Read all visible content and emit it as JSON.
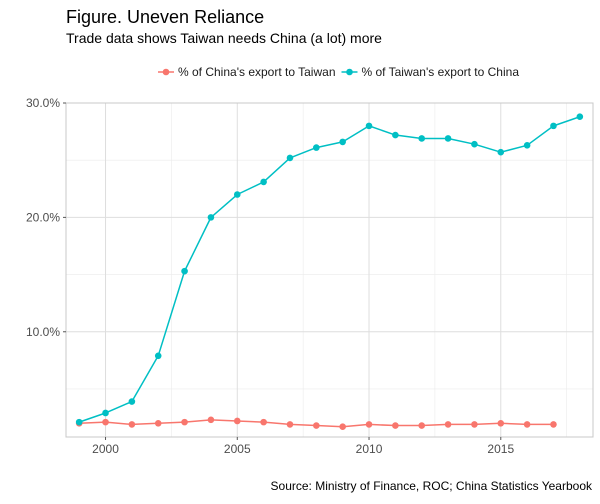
{
  "chart_data": {
    "type": "line",
    "title": "Figure. Uneven Reliance",
    "subtitle": "Trade data shows Taiwan needs China (a lot) more",
    "caption": "Source: Ministry of Finance, ROC; China Statistics Yearbook",
    "xlabel": "",
    "ylabel": "",
    "xlim": [
      1998.5,
      2018.5
    ],
    "ylim": [
      0.8,
      30.0
    ],
    "x_ticks": [
      2000,
      2005,
      2010,
      2015
    ],
    "x_tick_labels": [
      "2000",
      "2005",
      "2010",
      "2015"
    ],
    "y_ticks": [
      10,
      20,
      30
    ],
    "y_tick_labels": [
      "10.0%",
      "20.0%",
      "30.0%"
    ],
    "grid": true,
    "legend_position": "top",
    "series": [
      {
        "name": "% of China's export to Taiwan",
        "color": "#F8766D",
        "x": [
          1999,
          2000,
          2001,
          2002,
          2003,
          2004,
          2005,
          2006,
          2007,
          2008,
          2009,
          2010,
          2011,
          2012,
          2013,
          2014,
          2015,
          2016,
          2017
        ],
        "values": [
          2.0,
          2.1,
          1.9,
          2.0,
          2.1,
          2.3,
          2.2,
          2.1,
          1.9,
          1.8,
          1.7,
          1.9,
          1.8,
          1.8,
          1.9,
          1.9,
          2.0,
          1.9,
          1.9
        ]
      },
      {
        "name": "% of Taiwan's export to China",
        "color": "#00BFC4",
        "x": [
          1999,
          2000,
          2001,
          2002,
          2003,
          2004,
          2005,
          2006,
          2007,
          2008,
          2009,
          2010,
          2011,
          2012,
          2013,
          2014,
          2015,
          2016,
          2017,
          2018
        ],
        "values": [
          2.1,
          2.9,
          3.9,
          7.9,
          15.3,
          20.0,
          22.0,
          23.1,
          25.2,
          26.1,
          26.6,
          28.0,
          27.2,
          26.9,
          26.9,
          26.4,
          25.7,
          26.3,
          28.0,
          28.8
        ]
      }
    ]
  }
}
